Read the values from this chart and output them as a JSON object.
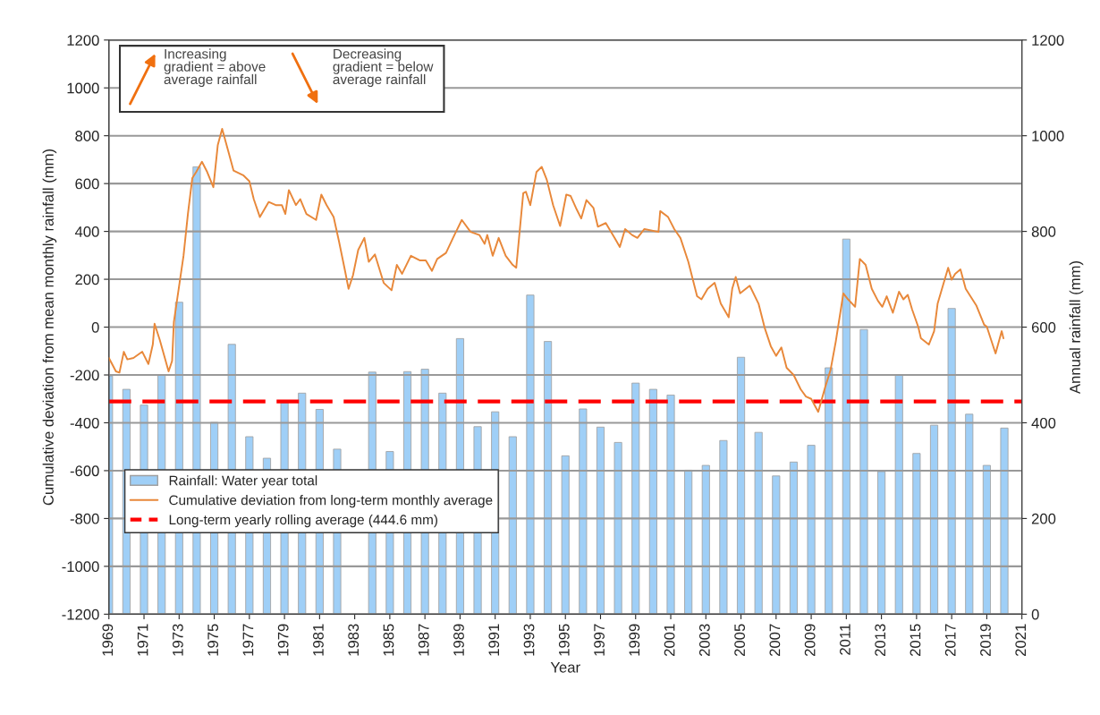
{
  "chart_data": {
    "type": "bar",
    "xlabel": "Year",
    "ylabel": "Cumulative deviation from mean monthly rainfall (mm)",
    "y2label": "Annual rainfall (mm)",
    "annotations": [
      "Increasing\ngradient = above\naverage rainfall",
      "Decreasing\ngradient = below\naverage rainfall"
    ],
    "xlim": [
      1969,
      2021
    ],
    "xticks": [
      1969,
      1971,
      1973,
      1975,
      1977,
      1979,
      1981,
      1983,
      1985,
      1987,
      1989,
      1991,
      1993,
      1995,
      1997,
      1999,
      2001,
      2003,
      2005,
      2007,
      2009,
      2011,
      2013,
      2015,
      2017,
      2019,
      2021
    ],
    "ylim": [
      -1200,
      1200
    ],
    "yticks": [
      -1200,
      -1000,
      -800,
      -600,
      -400,
      -200,
      0,
      200,
      400,
      600,
      800,
      1000,
      1200
    ],
    "y2lim": [
      0,
      1200
    ],
    "y2ticks": [
      0,
      200,
      400,
      600,
      800,
      1000,
      1200
    ],
    "grid": true,
    "legend": "bottom left",
    "series": [
      {
        "axis": "y2",
        "name": "Rainfall: Water year total",
        "color": "#9fcff7",
        "x": [
          1969,
          1970,
          1971,
          1972,
          1973,
          1974,
          1975,
          1976,
          1977,
          1978,
          1979,
          1980,
          1981,
          1982,
          1983,
          1984,
          1985,
          1986,
          1987,
          1988,
          1989,
          1990,
          1991,
          1992,
          1993,
          1994,
          1995,
          1996,
          1997,
          1998,
          1999,
          2000,
          2001,
          2002,
          2003,
          2004,
          2005,
          2006,
          2007,
          2008,
          2009,
          2010,
          2011,
          2012,
          2013,
          2014,
          2015,
          2016,
          2017,
          2018,
          2019,
          2020
        ],
        "values": [
          498,
          470,
          437,
          500,
          652,
          935,
          401,
          564,
          371,
          326,
          442,
          462,
          428,
          345,
          null,
          506,
          340,
          507,
          512,
          462,
          576,
          392,
          423,
          371,
          667,
          570,
          331,
          429,
          391,
          359,
          483,
          470,
          458,
          301,
          311,
          363,
          537,
          380,
          289,
          318,
          353,
          515,
          784,
          595,
          298,
          500,
          336,
          395,
          639,
          418,
          311,
          389
        ]
      },
      {
        "type": "line",
        "name": "Cumulative deviation from long-term monthly average",
        "color": "#e8883a",
        "x": [
          1969.0,
          1969.4,
          1969.6,
          1969.85,
          1970.05,
          1970.4,
          1970.9,
          1971.25,
          1971.5,
          1971.6,
          1971.9,
          1972.4,
          1972.6,
          1972.7,
          1972.9,
          1973.25,
          1973.5,
          1973.75,
          1973.97,
          1974.3,
          1974.6,
          1974.95,
          1975.2,
          1975.45,
          1975.8,
          1976.1,
          1976.65,
          1977.0,
          1977.25,
          1977.6,
          1978.1,
          1978.5,
          1978.85,
          1979.05,
          1979.25,
          1979.65,
          1979.9,
          1980.25,
          1980.8,
          1981.1,
          1981.4,
          1981.8,
          1982.1,
          1982.45,
          1982.65,
          1982.9,
          1983.2,
          1983.55,
          1983.8,
          1984.15,
          1984.65,
          1985.1,
          1985.4,
          1985.7,
          1986.2,
          1986.7,
          1987.05,
          1987.4,
          1987.7,
          1988.2,
          1988.6,
          1989.1,
          1989.6,
          1990.1,
          1990.4,
          1990.55,
          1990.86,
          1991.2,
          1991.6,
          1992.0,
          1992.2,
          1992.6,
          1992.75,
          1993.0,
          1993.35,
          1993.65,
          1993.94,
          1994.3,
          1994.7,
          1995.05,
          1995.3,
          1995.65,
          1995.9,
          1996.2,
          1996.6,
          1996.85,
          1997.3,
          1997.8,
          1998.1,
          1998.4,
          1998.8,
          1999.1,
          1999.5,
          2000.3,
          2000.4,
          2000.85,
          2001.2,
          2001.55,
          2002.0,
          2002.5,
          2002.75,
          2003.1,
          2003.5,
          2003.85,
          2004.3,
          2004.5,
          2004.7,
          2004.95,
          2005.5,
          2006.0,
          2006.35,
          2006.7,
          2007.0,
          2007.3,
          2007.6,
          2008.0,
          2008.4,
          2008.7,
          2009.0,
          2009.4,
          2009.8,
          2010.1,
          2010.4,
          2010.55,
          2010.83,
          2011.1,
          2011.5,
          2011.77,
          2012.1,
          2012.45,
          2012.8,
          2013.05,
          2013.3,
          2013.65,
          2014.0,
          2014.25,
          2014.5,
          2014.75,
          2015.1,
          2015.25,
          2015.7,
          2016.0,
          2016.2,
          2016.8,
          2017.0,
          2017.2,
          2017.5,
          2017.8,
          2018.4,
          2018.85,
          2019.0,
          2019.5,
          2019.85,
          2019.95
        ],
        "values": [
          -129,
          -185,
          -190,
          -103,
          -135,
          -129,
          -103,
          -154,
          -73,
          14,
          -54,
          -185,
          -141,
          21,
          122,
          298,
          473,
          623,
          648,
          691,
          648,
          585,
          760,
          829,
          735,
          654,
          635,
          610,
          535,
          460,
          523,
          510,
          510,
          473,
          573,
          510,
          535,
          473,
          448,
          554,
          510,
          460,
          360,
          235,
          160,
          216,
          323,
          373,
          273,
          304,
          185,
          154,
          260,
          223,
          298,
          279,
          279,
          235,
          285,
          310,
          373,
          448,
          398,
          385,
          348,
          385,
          298,
          373,
          298,
          260,
          248,
          560,
          566,
          510,
          648,
          670,
          616,
          510,
          423,
          554,
          548,
          491,
          454,
          531,
          498,
          420,
          435,
          373,
          335,
          410,
          385,
          373,
          410,
          398,
          485,
          460,
          410,
          373,
          273,
          129,
          116,
          160,
          185,
          98,
          41,
          160,
          210,
          141,
          173,
          98,
          -3,
          -80,
          -120,
          -85,
          -170,
          -200,
          -260,
          -290,
          -300,
          -354,
          -250,
          -180,
          -60,
          10,
          141,
          116,
          85,
          285,
          260,
          160,
          110,
          85,
          129,
          60,
          148,
          116,
          135,
          73,
          0,
          -47,
          -73,
          -17,
          98,
          248,
          198,
          223,
          241,
          160,
          91,
          10,
          2,
          -110,
          -17,
          -47
        ]
      }
    ],
    "ref_lines": [
      {
        "axis": "y2",
        "value": 444.6,
        "label": "Long-term yearly rolling average (444.6 mm)",
        "color": "#ff0000",
        "line_style": "dashed"
      }
    ]
  }
}
